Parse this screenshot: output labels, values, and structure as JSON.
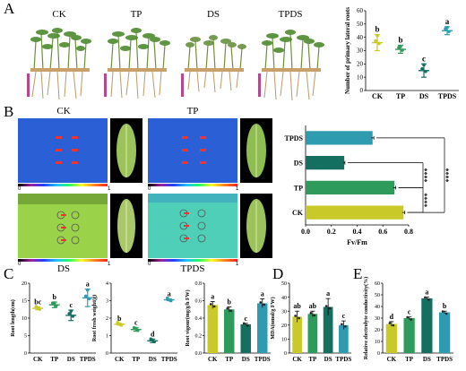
{
  "figure": {
    "panel_labels": [
      "A",
      "B",
      "C",
      "D",
      "E"
    ],
    "photo_labels": [
      "CK",
      "TP",
      "DS",
      "TPDS"
    ],
    "colorbar_ticks": [
      "0",
      "1"
    ]
  },
  "colors": {
    "CK": "#c9c92a",
    "TP": "#2e9a5b",
    "DS": "#156f61",
    "TPDS": "#2e9bb0",
    "fluor_low": "#2a5fd6",
    "fluor_high": "#9ad24a"
  },
  "chart_data": [
    {
      "id": "A",
      "type": "scatter",
      "categories": [
        "CK",
        "TP",
        "DS",
        "TPDS"
      ],
      "ylabel": "Number of primary lateral roots",
      "ylim": [
        0,
        60
      ],
      "yticks": [
        0,
        10,
        20,
        30,
        40,
        50,
        60
      ],
      "means": [
        36,
        31,
        15,
        45
      ],
      "errors": [
        6,
        3,
        5,
        3
      ],
      "letters": [
        "b",
        "b",
        "c",
        "a"
      ]
    },
    {
      "id": "B",
      "type": "bar",
      "orientation": "horizontal",
      "categories": [
        "TPDS",
        "DS",
        "TP",
        "CK"
      ],
      "values": [
        0.52,
        0.3,
        0.69,
        0.76
      ],
      "errors": [
        0.01,
        0.005,
        0.01,
        0.01
      ],
      "xlabel": "Fv/Fm",
      "xlim": [
        0,
        0.8
      ],
      "xticks": [
        "0.0",
        "0.2",
        "0.4",
        "0.6",
        "0.8"
      ],
      "significance": [
        "****",
        "****",
        "****"
      ]
    },
    {
      "id": "C1",
      "type": "scatter",
      "categories": [
        "CK",
        "TP",
        "DS",
        "TPDS"
      ],
      "ylabel": "Root length(cm)",
      "ylim": [
        0,
        20
      ],
      "yticks": [
        0,
        5,
        10,
        15,
        20
      ],
      "means": [
        12.8,
        13.8,
        10.8,
        15.8
      ],
      "errors": [
        0.4,
        0.8,
        1.5,
        2.5
      ],
      "letters": [
        "bc",
        "b",
        "c",
        "a"
      ]
    },
    {
      "id": "C2",
      "type": "scatter",
      "categories": [
        "CK",
        "TP",
        "DS",
        "TPDS"
      ],
      "ylabel": "Root fresh weight(g)",
      "ylim": [
        0,
        4
      ],
      "yticks": [
        0,
        1,
        2,
        3,
        4
      ],
      "means": [
        1.65,
        1.35,
        0.7,
        3.05
      ],
      "errors": [
        0.05,
        0.1,
        0.1,
        0.05
      ],
      "letters": [
        "b",
        "c",
        "d",
        "a"
      ]
    },
    {
      "id": "C3",
      "type": "bar",
      "categories": [
        "CK",
        "TP",
        "DS",
        "TPDS"
      ],
      "ylabel": "Root vigour(mg/g/h FW)",
      "ylim": [
        0,
        0.8
      ],
      "yticks": [
        "0.0",
        "0.2",
        "0.4",
        "0.6",
        "0.8"
      ],
      "values": [
        0.55,
        0.5,
        0.33,
        0.57
      ],
      "errors": [
        0.04,
        0.03,
        0.01,
        0.05
      ],
      "letters": [
        "a",
        "b",
        "c",
        "a"
      ]
    },
    {
      "id": "D",
      "type": "bar",
      "categories": [
        "CK",
        "TP",
        "DS",
        "TPDS"
      ],
      "ylabel": "MDA(nmol/g FW)",
      "ylim": [
        0,
        50
      ],
      "yticks": [
        0,
        10,
        20,
        30,
        40,
        50
      ],
      "values": [
        26,
        28,
        33,
        20
      ],
      "errors": [
        4,
        2,
        6,
        3
      ],
      "letters": [
        "ab",
        "ab",
        "a",
        "c"
      ]
    },
    {
      "id": "E",
      "type": "bar",
      "categories": [
        "CK",
        "TP",
        "DS",
        "TPDS"
      ],
      "ylabel": "Relative electrolyte conductivity(%)",
      "ylim": [
        0,
        60
      ],
      "yticks": [
        0,
        10,
        20,
        30,
        40,
        50,
        60
      ],
      "values": [
        25,
        30,
        47,
        35
      ],
      "errors": [
        2,
        1,
        1,
        1
      ],
      "letters": [
        "d",
        "c",
        "a",
        "b"
      ]
    }
  ]
}
